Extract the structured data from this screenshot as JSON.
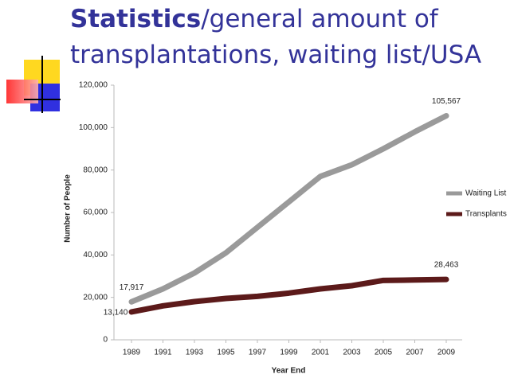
{
  "slide": {
    "title_bold": "Statistics",
    "title_rest": "/general amount of transplantations, waiting list/USA"
  },
  "chart_data": {
    "type": "line",
    "x_label": "Year End",
    "y_label": "Number of People",
    "categories": [
      "1989",
      "1991",
      "1993",
      "1995",
      "1997",
      "1999",
      "2001",
      "2003",
      "2005",
      "2007",
      "2009"
    ],
    "series": [
      {
        "name": "Waiting List",
        "color": "#9a9a9a",
        "values": [
          17917,
          24000,
          31500,
          41000,
          53000,
          65000,
          77000,
          82500,
          90000,
          98000,
          105567
        ],
        "value_labels": [
          "17,917",
          null,
          null,
          null,
          null,
          null,
          null,
          null,
          null,
          null,
          "105,567"
        ]
      },
      {
        "name": "Transplants",
        "color": "#5c1a1a",
        "values": [
          13140,
          16000,
          18000,
          19500,
          20500,
          22000,
          24000,
          25500,
          28000,
          28200,
          28463
        ],
        "value_labels": [
          "13,140",
          null,
          null,
          null,
          null,
          null,
          null,
          null,
          null,
          null,
          "28,463"
        ]
      }
    ],
    "ylim": [
      0,
      120000
    ],
    "yticks": [
      0,
      {
        "value": 20000,
        "label": "20,000"
      },
      {
        "value": 40000,
        "label": "40,000"
      },
      {
        "value": 60000,
        "label": "60,000"
      },
      {
        "value": 80000,
        "label": "80,000"
      },
      {
        "value": 100000,
        "label": "100,000"
      },
      {
        "value": 120000,
        "label": "120,000"
      }
    ],
    "legend": "right"
  }
}
